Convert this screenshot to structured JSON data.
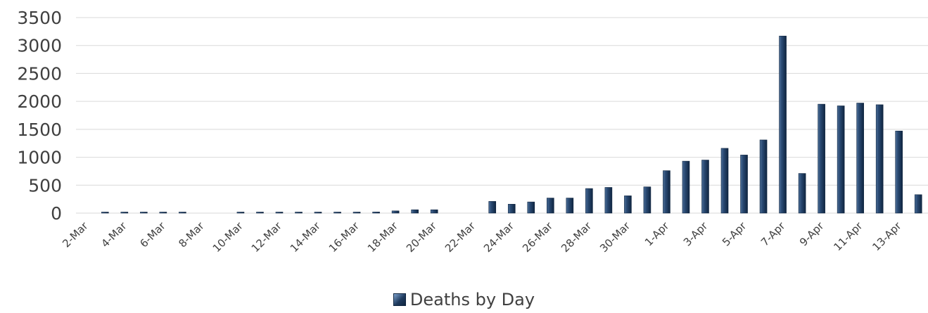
{
  "chart_data": {
    "type": "bar",
    "categories": [
      "2-Mar",
      "3-Mar",
      "4-Mar",
      "5-Mar",
      "6-Mar",
      "7-Mar",
      "8-Mar",
      "9-Mar",
      "10-Mar",
      "11-Mar",
      "12-Mar",
      "13-Mar",
      "14-Mar",
      "15-Mar",
      "16-Mar",
      "17-Mar",
      "18-Mar",
      "19-Mar",
      "20-Mar",
      "21-Mar",
      "22-Mar",
      "23-Mar",
      "24-Mar",
      "25-Mar",
      "26-Mar",
      "27-Mar",
      "28-Mar",
      "29-Mar",
      "30-Mar",
      "31-Mar",
      "1-Apr",
      "2-Apr",
      "3-Apr",
      "4-Apr",
      "5-Apr",
      "6-Apr",
      "7-Apr",
      "8-Apr",
      "9-Apr",
      "10-Apr",
      "11-Apr",
      "12-Apr",
      "13-Apr",
      "14-Apr"
    ],
    "x_tick_labels": [
      "2-Mar",
      "4-Mar",
      "6-Mar",
      "8-Mar",
      "10-Mar",
      "12-Mar",
      "14-Mar",
      "16-Mar",
      "18-Mar",
      "20-Mar",
      "22-Mar",
      "24-Mar",
      "26-Mar",
      "28-Mar",
      "30-Mar",
      "1-Apr",
      "3-Apr",
      "5-Apr",
      "7-Apr",
      "9-Apr",
      "11-Apr",
      "13-Apr"
    ],
    "series": [
      {
        "name": "Deaths by Day",
        "values": [
          0,
          2,
          2,
          3,
          2,
          2,
          0,
          0,
          3,
          8,
          8,
          10,
          16,
          10,
          15,
          20,
          40,
          60,
          60,
          0,
          0,
          210,
          160,
          200,
          270,
          270,
          440,
          460,
          310,
          470,
          760,
          930,
          950,
          1160,
          1040,
          1310,
          3170,
          710,
          1950,
          1920,
          1970,
          1940,
          1470,
          330
        ]
      }
    ],
    "ylim": [
      0,
      3500
    ],
    "y_ticks": [
      0,
      500,
      1000,
      1500,
      2000,
      2500,
      3000,
      3500
    ],
    "grid": true,
    "legend_position": "bottom",
    "colors": {
      "bar": "#1f3b5e",
      "bar_light": "#7ea3cf",
      "bar_dark": "#0f2540",
      "grid": "#d9d9d9",
      "text": "#404040"
    }
  }
}
